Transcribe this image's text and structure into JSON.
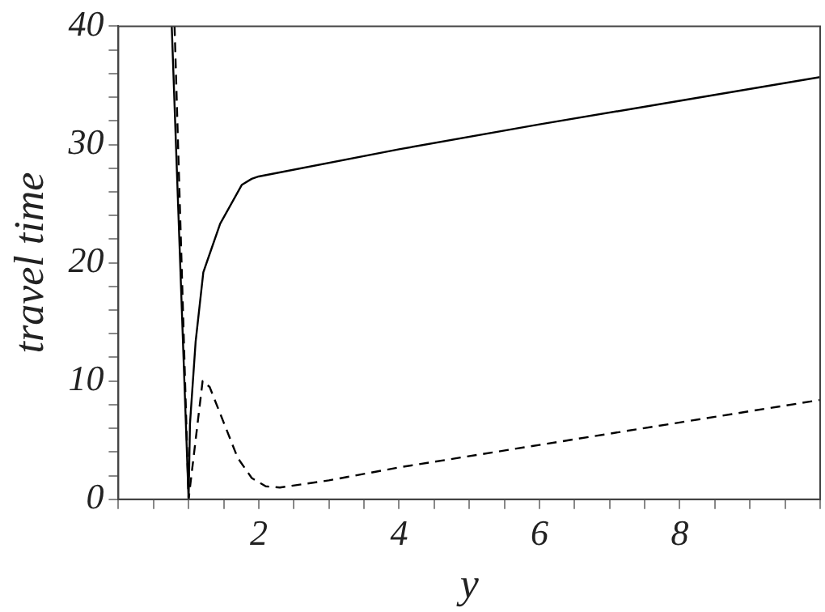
{
  "chart_data": {
    "type": "line",
    "xlabel": "y",
    "ylabel": "travel time",
    "xlim": [
      0,
      10
    ],
    "ylim": [
      0,
      40
    ],
    "xticks": [
      {
        "value": 0,
        "label": null
      },
      {
        "value": 0.5,
        "label": null
      },
      {
        "value": 1,
        "label": null
      },
      {
        "value": 1.5,
        "label": null
      },
      2,
      {
        "value": 2.5,
        "label": null
      },
      {
        "value": 3,
        "label": null
      },
      {
        "value": 3.5,
        "label": null
      },
      4,
      {
        "value": 4.5,
        "label": null
      },
      {
        "value": 5,
        "label": null
      },
      {
        "value": 5.5,
        "label": null
      },
      6,
      {
        "value": 6.5,
        "label": null
      },
      {
        "value": 7,
        "label": null
      },
      {
        "value": 7.5,
        "label": null
      },
      8,
      {
        "value": 8.5,
        "label": null
      },
      {
        "value": 9,
        "label": null
      },
      {
        "value": 9.5,
        "label": null
      },
      {
        "value": 10,
        "label": null
      }
    ],
    "yticks": [
      0,
      {
        "value": 2,
        "label": null
      },
      {
        "value": 4,
        "label": null
      },
      {
        "value": 6,
        "label": null
      },
      {
        "value": 8,
        "label": null
      },
      10,
      {
        "value": 12,
        "label": null
      },
      {
        "value": 14,
        "label": null
      },
      {
        "value": 16,
        "label": null
      },
      {
        "value": 18,
        "label": null
      },
      20,
      {
        "value": 22,
        "label": null
      },
      {
        "value": 24,
        "label": null
      },
      {
        "value": 26,
        "label": null
      },
      {
        "value": 28,
        "label": null
      },
      30,
      {
        "value": 32,
        "label": null
      },
      {
        "value": 34,
        "label": null
      },
      {
        "value": 36,
        "label": null
      },
      {
        "value": 38,
        "label": null
      },
      40
    ],
    "grid": false,
    "legend": false,
    "marker": "none",
    "series": [
      {
        "color": "#000000",
        "line_style": "solid",
        "x": [
          0.76,
          1,
          1.02,
          1.1,
          1.21,
          1.45,
          1.76,
          1.9,
          2,
          4,
          6,
          8,
          10
        ],
        "values": [
          40,
          0,
          6.4,
          13.3,
          19.2,
          23.3,
          26.6,
          27.1,
          27.3,
          29.6,
          31.7,
          33.7,
          35.7
        ]
      },
      {
        "color": "#000000",
        "line_style": "dashed",
        "x": [
          0.8,
          1,
          1.1,
          1.2,
          1.3,
          1.5,
          1.7,
          1.9,
          2.1,
          2.3,
          3,
          4,
          6,
          8,
          10
        ],
        "values": [
          40,
          0,
          5,
          10,
          9.5,
          6.5,
          3.5,
          1.8,
          1.1,
          1,
          1.6,
          2.7,
          4.6,
          6.5,
          8.4
        ]
      }
    ]
  }
}
